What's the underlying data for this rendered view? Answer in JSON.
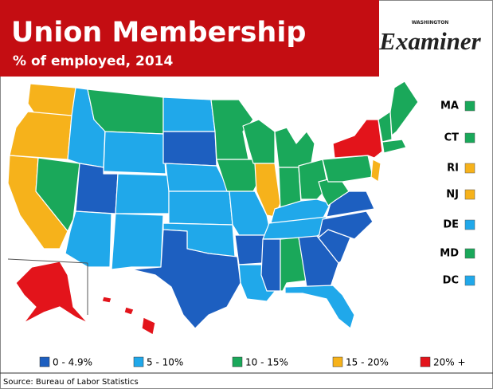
{
  "header": {
    "title": "Union Membership",
    "subtitle": "% of employed, 2014"
  },
  "logo": {
    "kicker": "WASHINGTON",
    "name": "Examiner"
  },
  "small_states": [
    {
      "label": "MA",
      "color": "#1aa85a"
    },
    {
      "label": "CT",
      "color": "#1aa85a"
    },
    {
      "label": "RI",
      "color": "#f6b21b"
    },
    {
      "label": "NJ",
      "color": "#f6b21b"
    },
    {
      "label": "DE",
      "color": "#20a8ea"
    },
    {
      "label": "MD",
      "color": "#1aa85a"
    },
    {
      "label": "DC",
      "color": "#20a8ea"
    }
  ],
  "legend": [
    {
      "label": "0 - 4.9%",
      "color": "#1d5fc0"
    },
    {
      "label": "5 - 10%",
      "color": "#20a8ea"
    },
    {
      "label": "10 - 15%",
      "color": "#1aa85a"
    },
    {
      "label": "15 - 20%",
      "color": "#f6b21b"
    },
    {
      "label": "20% +",
      "color": "#e3141b"
    }
  ],
  "source": "Source: Bureau of Labor Statistics"
}
